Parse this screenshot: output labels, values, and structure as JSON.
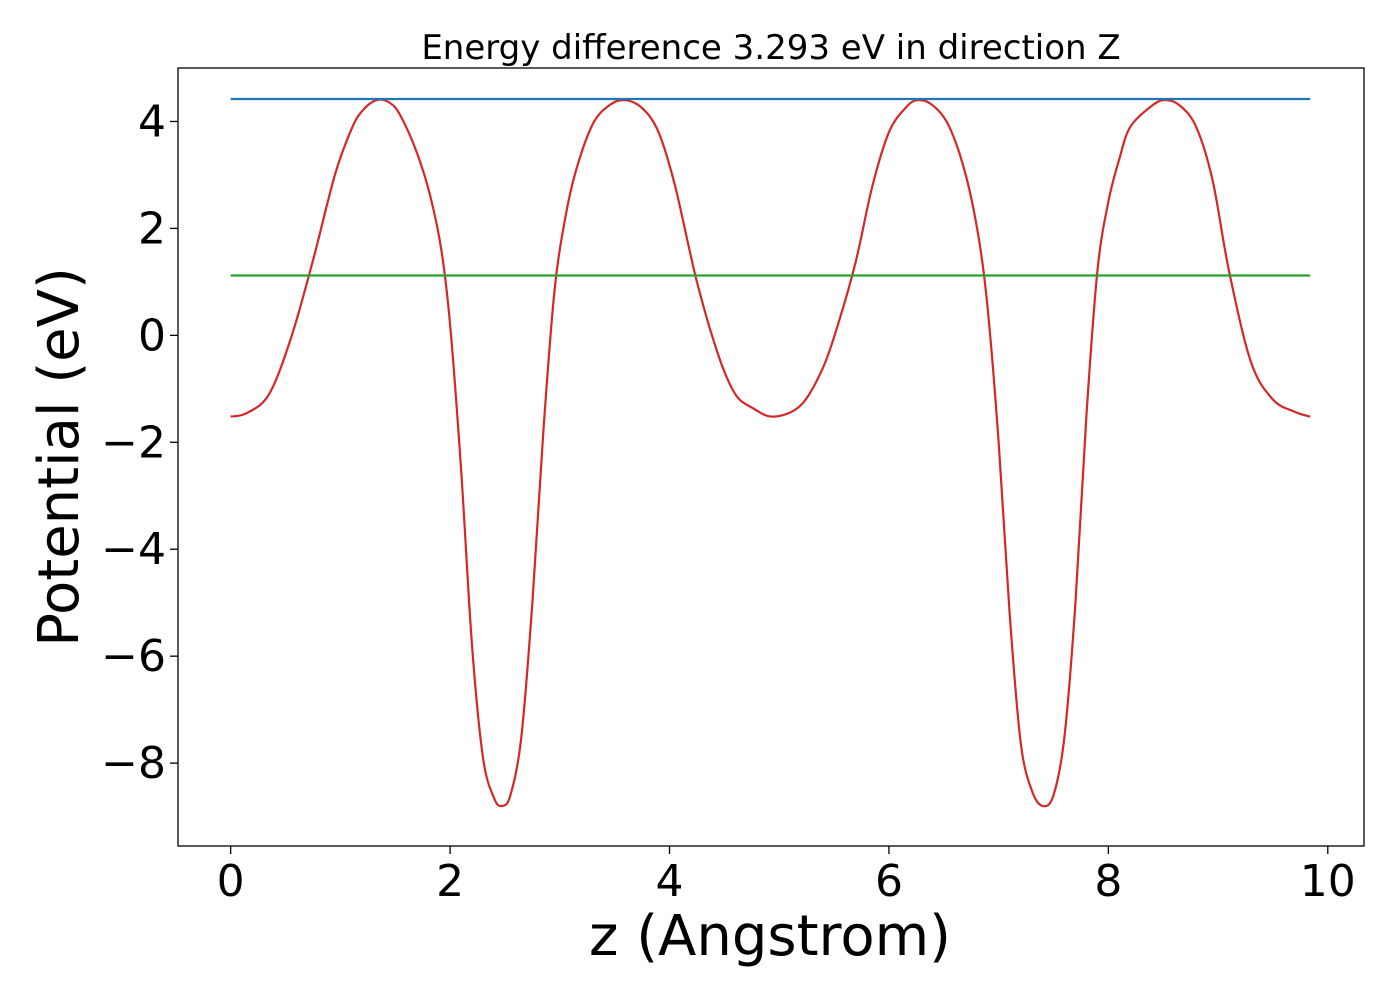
{
  "chart_data": {
    "type": "line",
    "title": "Energy difference 3.293 eV in direction Z",
    "xlabel": "z (Angstrom)",
    "ylabel": "Potential (eV)",
    "xlim": [
      -0.48,
      10.33
    ],
    "ylim": [
      -9.55,
      5.0
    ],
    "xticks": [
      0,
      2,
      4,
      6,
      8,
      10
    ],
    "xtick_labels": [
      "0",
      "2",
      "4",
      "6",
      "8",
      "10"
    ],
    "yticks": [
      4,
      2,
      0,
      -2,
      -4,
      -6,
      -8
    ],
    "ytick_labels": [
      "4",
      "2",
      "0",
      "−2",
      "−4",
      "−6",
      "−8"
    ],
    "grid": false,
    "series": [
      {
        "color": "#d62728",
        "x": [
          0.0,
          0.15,
          0.35,
          0.55,
          0.75,
          0.95,
          1.1,
          1.2,
          1.33,
          1.45,
          1.55,
          1.7,
          1.82,
          1.92,
          2.0,
          2.1,
          2.2,
          2.3,
          2.4,
          2.47,
          2.55,
          2.65,
          2.75,
          2.85,
          2.95,
          3.05,
          3.15,
          3.3,
          3.45,
          3.59,
          3.75,
          3.9,
          4.05,
          4.25,
          4.45,
          4.6,
          4.75,
          4.95,
          5.2,
          5.4,
          5.55,
          5.7,
          5.85,
          6.0,
          6.15,
          6.26,
          6.4,
          6.55,
          6.7,
          6.82,
          6.9,
          7.0,
          7.1,
          7.2,
          7.3,
          7.4,
          7.5,
          7.6,
          7.7,
          7.8,
          7.9,
          8.0,
          8.1,
          8.2,
          8.4,
          8.52,
          8.65,
          8.8,
          8.95,
          9.1,
          9.3,
          9.5,
          9.7,
          9.84
        ],
        "y": [
          -1.52,
          -1.45,
          -1.1,
          -0.05,
          1.4,
          3.0,
          3.85,
          4.2,
          4.4,
          4.35,
          4.1,
          3.4,
          2.6,
          1.6,
          0.2,
          -2.5,
          -5.8,
          -7.9,
          -8.65,
          -8.8,
          -8.6,
          -7.5,
          -5.0,
          -1.8,
          0.8,
          2.2,
          3.1,
          3.95,
          4.3,
          4.4,
          4.25,
          3.8,
          2.8,
          1.0,
          -0.4,
          -1.1,
          -1.35,
          -1.52,
          -1.3,
          -0.6,
          0.3,
          1.4,
          2.8,
          3.8,
          4.25,
          4.4,
          4.3,
          3.9,
          3.0,
          1.8,
          0.5,
          -2.0,
          -5.2,
          -7.6,
          -8.5,
          -8.8,
          -8.6,
          -7.5,
          -5.0,
          -1.5,
          1.2,
          2.5,
          3.3,
          3.9,
          4.3,
          4.4,
          4.3,
          3.9,
          2.9,
          1.2,
          -0.5,
          -1.2,
          -1.43,
          -1.52
        ]
      },
      {
        "color": "#1f77b4",
        "x": [
          0.0,
          9.84
        ],
        "y": [
          4.42,
          4.42
        ]
      },
      {
        "color": "#2ca02c",
        "x": [
          0.0,
          9.84
        ],
        "y": [
          1.12,
          1.12
        ]
      }
    ]
  }
}
